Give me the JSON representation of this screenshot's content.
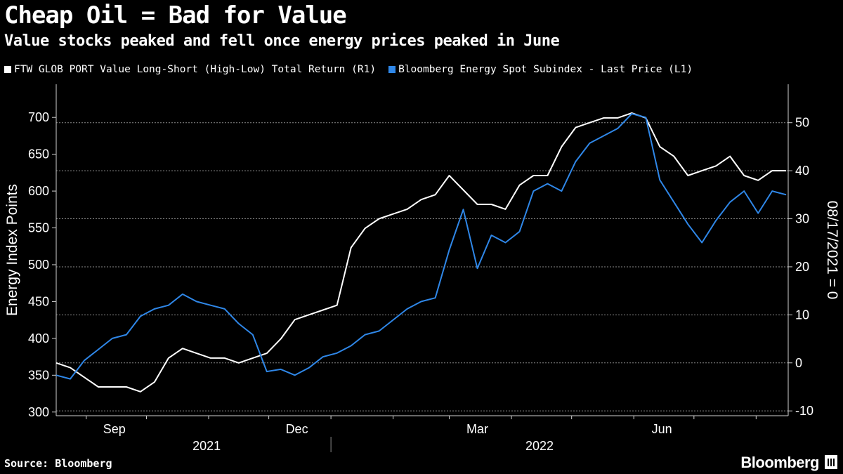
{
  "chart_data": {
    "type": "line",
    "title": "Cheap Oil = Bad for Value",
    "subtitle": "Value stocks peaked and fell once energy prices peaked in June",
    "left_axis": {
      "label": "Energy Index Points",
      "ylim": [
        295,
        745
      ],
      "ticks": [
        300,
        350,
        400,
        450,
        500,
        550,
        600,
        650,
        700
      ]
    },
    "right_axis": {
      "label": "08/17/2021 = 0",
      "ylim": [
        -11,
        58
      ],
      "ticks": [
        -10,
        0,
        10,
        20,
        30,
        40,
        50
      ]
    },
    "x_axis": {
      "xlim": [
        "2021-08-17",
        "2022-08-17"
      ],
      "month_labels": [
        {
          "date": "2021-09-15",
          "label": "Sep"
        },
        {
          "date": "2021-12-15",
          "label": "Dec"
        },
        {
          "date": "2022-03-15",
          "label": "Mar"
        },
        {
          "date": "2022-06-15",
          "label": "Jun"
        }
      ],
      "year_labels": [
        {
          "date": "2021-10-31",
          "label": "2021"
        },
        {
          "date": "2022-04-15",
          "label": "2022"
        }
      ]
    },
    "series": [
      {
        "name": "FTW GLOB PORT Value Long-Short (High-Low) Total Return (R1)",
        "axis": "right",
        "color": "#ffffff",
        "points": [
          [
            "2021-08-17",
            0
          ],
          [
            "2021-08-24",
            -1
          ],
          [
            "2021-08-31",
            -3
          ],
          [
            "2021-09-07",
            -5
          ],
          [
            "2021-09-14",
            -5
          ],
          [
            "2021-09-21",
            -5
          ],
          [
            "2021-09-28",
            -6
          ],
          [
            "2021-10-05",
            -4
          ],
          [
            "2021-10-12",
            1
          ],
          [
            "2021-10-19",
            3
          ],
          [
            "2021-10-26",
            2
          ],
          [
            "2021-11-02",
            1
          ],
          [
            "2021-11-09",
            1
          ],
          [
            "2021-11-16",
            0
          ],
          [
            "2021-11-23",
            1
          ],
          [
            "2021-11-30",
            2
          ],
          [
            "2021-12-07",
            5
          ],
          [
            "2021-12-14",
            9
          ],
          [
            "2021-12-21",
            10
          ],
          [
            "2021-12-28",
            11
          ],
          [
            "2022-01-04",
            12
          ],
          [
            "2022-01-11",
            24
          ],
          [
            "2022-01-18",
            28
          ],
          [
            "2022-01-25",
            30
          ],
          [
            "2022-02-01",
            31
          ],
          [
            "2022-02-08",
            32
          ],
          [
            "2022-02-15",
            34
          ],
          [
            "2022-02-22",
            35
          ],
          [
            "2022-03-01",
            39
          ],
          [
            "2022-03-08",
            36
          ],
          [
            "2022-03-15",
            33
          ],
          [
            "2022-03-22",
            33
          ],
          [
            "2022-03-29",
            32
          ],
          [
            "2022-04-05",
            37
          ],
          [
            "2022-04-12",
            39
          ],
          [
            "2022-04-19",
            39
          ],
          [
            "2022-04-26",
            45
          ],
          [
            "2022-05-03",
            49
          ],
          [
            "2022-05-10",
            50
          ],
          [
            "2022-05-17",
            51
          ],
          [
            "2022-05-24",
            51
          ],
          [
            "2022-05-31",
            52
          ],
          [
            "2022-06-07",
            51
          ],
          [
            "2022-06-14",
            45
          ],
          [
            "2022-06-21",
            43
          ],
          [
            "2022-06-28",
            39
          ],
          [
            "2022-07-05",
            40
          ],
          [
            "2022-07-12",
            41
          ],
          [
            "2022-07-19",
            43
          ],
          [
            "2022-07-26",
            39
          ],
          [
            "2022-08-02",
            38
          ],
          [
            "2022-08-09",
            40
          ],
          [
            "2022-08-16",
            40
          ]
        ]
      },
      {
        "name": "Bloomberg Energy Spot Subindex - Last Price (L1)",
        "axis": "left",
        "color": "#2f87e8",
        "points": [
          [
            "2021-08-17",
            350
          ],
          [
            "2021-08-24",
            345
          ],
          [
            "2021-08-31",
            370
          ],
          [
            "2021-09-07",
            385
          ],
          [
            "2021-09-14",
            400
          ],
          [
            "2021-09-21",
            405
          ],
          [
            "2021-09-28",
            430
          ],
          [
            "2021-10-05",
            440
          ],
          [
            "2021-10-12",
            445
          ],
          [
            "2021-10-19",
            460
          ],
          [
            "2021-10-26",
            450
          ],
          [
            "2021-11-02",
            445
          ],
          [
            "2021-11-09",
            440
          ],
          [
            "2021-11-16",
            420
          ],
          [
            "2021-11-23",
            405
          ],
          [
            "2021-11-30",
            355
          ],
          [
            "2021-12-07",
            358
          ],
          [
            "2021-12-14",
            350
          ],
          [
            "2021-12-21",
            360
          ],
          [
            "2021-12-28",
            375
          ],
          [
            "2022-01-04",
            380
          ],
          [
            "2022-01-11",
            390
          ],
          [
            "2022-01-18",
            405
          ],
          [
            "2022-01-25",
            410
          ],
          [
            "2022-02-01",
            425
          ],
          [
            "2022-02-08",
            440
          ],
          [
            "2022-02-15",
            450
          ],
          [
            "2022-02-22",
            455
          ],
          [
            "2022-03-01",
            520
          ],
          [
            "2022-03-08",
            575
          ],
          [
            "2022-03-15",
            495
          ],
          [
            "2022-03-22",
            540
          ],
          [
            "2022-03-29",
            530
          ],
          [
            "2022-04-05",
            545
          ],
          [
            "2022-04-12",
            600
          ],
          [
            "2022-04-19",
            610
          ],
          [
            "2022-04-26",
            600
          ],
          [
            "2022-05-03",
            640
          ],
          [
            "2022-05-10",
            665
          ],
          [
            "2022-05-17",
            675
          ],
          [
            "2022-05-24",
            685
          ],
          [
            "2022-05-31",
            705
          ],
          [
            "2022-06-07",
            700
          ],
          [
            "2022-06-14",
            615
          ],
          [
            "2022-06-21",
            585
          ],
          [
            "2022-06-28",
            555
          ],
          [
            "2022-07-05",
            530
          ],
          [
            "2022-07-12",
            560
          ],
          [
            "2022-07-19",
            585
          ],
          [
            "2022-07-26",
            600
          ],
          [
            "2022-08-02",
            570
          ],
          [
            "2022-08-09",
            600
          ],
          [
            "2022-08-16",
            595
          ]
        ]
      }
    ]
  },
  "source": "Source: Bloomberg",
  "brand": "Bloomberg"
}
